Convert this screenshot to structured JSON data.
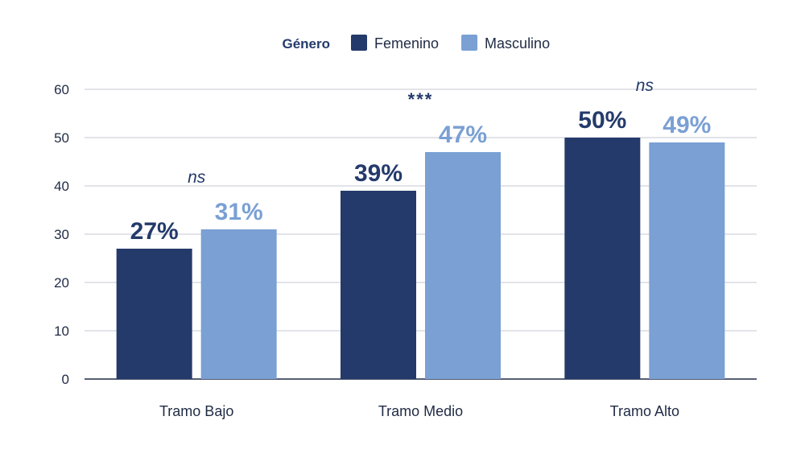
{
  "chart_data": {
    "type": "bar",
    "categories": [
      "Tramo Bajo",
      "Tramo Medio",
      "Tramo Alto"
    ],
    "series": [
      {
        "name": "Femenino",
        "values": [
          27,
          39,
          50
        ],
        "labels": [
          "27%",
          "39%",
          "50%"
        ],
        "color": "#243a6b"
      },
      {
        "name": "Masculino",
        "values": [
          31,
          47,
          49
        ],
        "labels": [
          "31%",
          "47%",
          "49%"
        ],
        "color": "#7aa0d4"
      }
    ],
    "significance": [
      "ns",
      "***",
      "ns"
    ],
    "legend_title": "Género",
    "legend_position": "top-center",
    "title": "",
    "xlabel": "",
    "ylabel": "",
    "ylim": [
      0,
      60
    ],
    "yticks": [
      "0",
      "10",
      "20",
      "30",
      "40",
      "50",
      "60"
    ],
    "grid": true,
    "colors": {
      "grid": "#c7cad6",
      "axis": "#1f2a44",
      "text": "#1f2a44"
    }
  }
}
